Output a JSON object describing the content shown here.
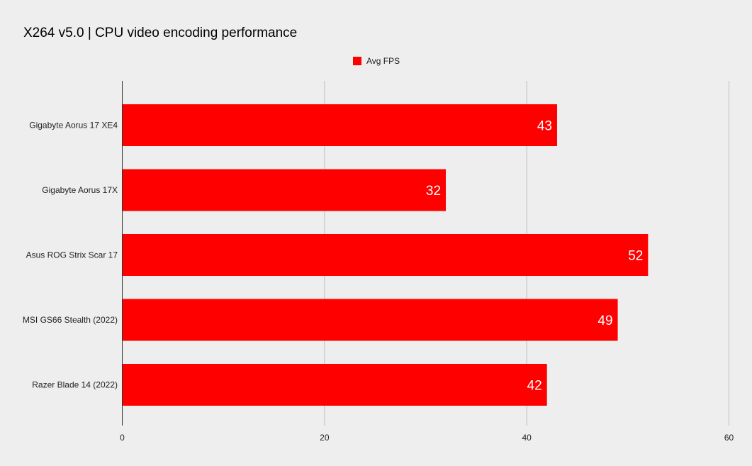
{
  "chart_data": {
    "type": "bar",
    "orientation": "horizontal",
    "title": "X264 v5.0 | CPU video encoding performance",
    "categories": [
      "Gigabyte Aorus 17 XE4",
      "Gigabyte Aorus 17X",
      "Asus ROG Strix Scar 17",
      "MSI GS66 Stealth (2022)",
      "Razer Blade 14 (2022)"
    ],
    "series": [
      {
        "name": "Avg FPS",
        "color": "#ff0000",
        "values": [
          43,
          32,
          52,
          49,
          42
        ],
        "labels": [
          "43",
          "32",
          "52",
          "49",
          "42"
        ]
      }
    ],
    "xlim": [
      0,
      60
    ],
    "xticks": [
      "0",
      "20",
      "40",
      "60"
    ],
    "xtick_values": [
      0,
      20,
      40,
      60
    ],
    "grid": true,
    "legend_position": "top-center"
  }
}
